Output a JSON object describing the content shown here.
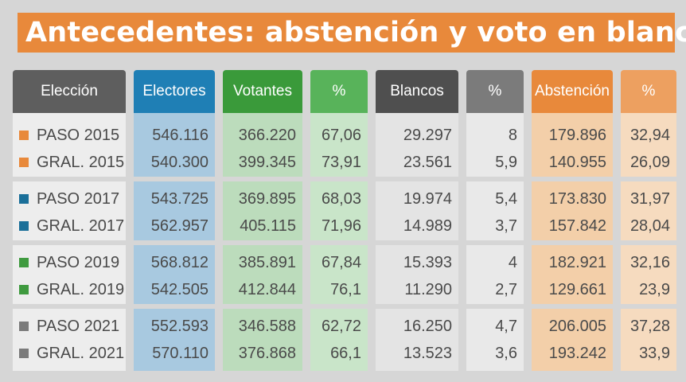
{
  "title": "Antecedentes: abstención y voto en blanco",
  "headers": [
    "Elección",
    "Electores",
    "Votantes",
    "%",
    "Blancos",
    "%",
    "Abstención",
    "%"
  ],
  "colors": {
    "orange": "#e8893b",
    "blue": "#1f7fb5",
    "green": "#3a9a3a",
    "green_light": "#58b35a",
    "dark_gray": "#4f4f4f",
    "gray": "#7b7b7b",
    "header_gray": "#5e5e5e",
    "sq_orange": "#e8893b",
    "sq_blue": "#1a6f99",
    "sq_green": "#3f9a3f",
    "sq_gray": "#7b7b7b"
  },
  "rows": [
    {
      "eleccion": "PASO 2015",
      "electores": "546.116",
      "votantes": "366.220",
      "pct_votantes": "67,06",
      "blancos": "29.297",
      "pct_blancos": "8",
      "abstencion": "179.896",
      "pct_abstencion": "32,94",
      "marker": "sq_orange"
    },
    {
      "eleccion": "GRAL. 2015",
      "electores": "540.300",
      "votantes": "399.345",
      "pct_votantes": "73,91",
      "blancos": "23.561",
      "pct_blancos": "5,9",
      "abstencion": "140.955",
      "pct_abstencion": "26,09",
      "marker": "sq_orange"
    },
    {
      "eleccion": "PASO 2017",
      "electores": "543.725",
      "votantes": "369.895",
      "pct_votantes": "68,03",
      "blancos": "19.974",
      "pct_blancos": "5,4",
      "abstencion": "173.830",
      "pct_abstencion": "31,97",
      "marker": "sq_blue"
    },
    {
      "eleccion": "GRAL. 2017",
      "electores": "562.957",
      "votantes": "405.115",
      "pct_votantes": "71,96",
      "blancos": "14.989",
      "pct_blancos": "3,7",
      "abstencion": "157.842",
      "pct_abstencion": "28,04",
      "marker": "sq_blue"
    },
    {
      "eleccion": "PASO 2019",
      "electores": "568.812",
      "votantes": "385.891",
      "pct_votantes": "67,84",
      "blancos": "15.393",
      "pct_blancos": "4",
      "abstencion": "182.921",
      "pct_abstencion": "32,16",
      "marker": "sq_green"
    },
    {
      "eleccion": "GRAL. 2019",
      "electores": "542.505",
      "votantes": "412.844",
      "pct_votantes": "76,1",
      "blancos": "11.290",
      "pct_blancos": "2,7",
      "abstencion": "129.661",
      "pct_abstencion": "23,9",
      "marker": "sq_green"
    },
    {
      "eleccion": "PASO 2021",
      "electores": "552.593",
      "votantes": "346.588",
      "pct_votantes": "62,72",
      "blancos": "16.250",
      "pct_blancos": "4,7",
      "abstencion": "206.005",
      "pct_abstencion": "37,28",
      "marker": "sq_gray"
    },
    {
      "eleccion": "GRAL. 2021",
      "electores": "570.110",
      "votantes": "376.868",
      "pct_votantes": "66,1",
      "blancos": "13.523",
      "pct_blancos": "3,6",
      "abstencion": "193.242",
      "pct_abstencion": "33,9",
      "marker": "sq_gray"
    }
  ]
}
